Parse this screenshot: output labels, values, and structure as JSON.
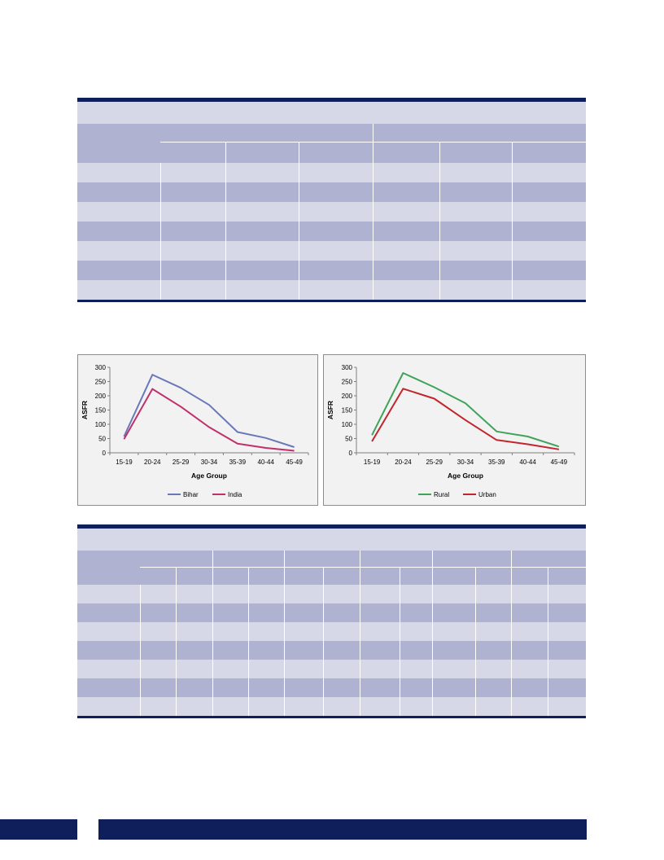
{
  "colors": {
    "navy": "#0f1f5c",
    "row_light": "#d6d8e8",
    "row_dark": "#b0b2d2",
    "bihar": "#6a78b8",
    "india": "#c0306a",
    "rural": "#3fa35a",
    "urban": "#c0262d"
  },
  "chart_data": [
    {
      "type": "line",
      "categories": [
        "15-19",
        "20-24",
        "25-29",
        "30-34",
        "35-39",
        "40-44",
        "45-49"
      ],
      "xlabel": "Age Group",
      "ylabel": "ASFR",
      "ylim": [
        0,
        300
      ],
      "yticks": [
        0,
        50,
        100,
        150,
        200,
        250,
        300
      ],
      "legend_position": "bottom",
      "grid": false,
      "series": [
        {
          "name": "Bihar",
          "color": "#6a78b8",
          "values": [
            57,
            274,
            228,
            168,
            73,
            52,
            20
          ]
        },
        {
          "name": "India",
          "color": "#c0306a",
          "values": [
            48,
            224,
            162,
            90,
            32,
            17,
            7
          ]
        }
      ]
    },
    {
      "type": "line",
      "categories": [
        "15-19",
        "20-24",
        "25-29",
        "30-34",
        "35-39",
        "40-44",
        "45-49"
      ],
      "xlabel": "Age Group",
      "ylabel": "ASFR",
      "ylim": [
        0,
        300
      ],
      "yticks": [
        0,
        50,
        100,
        150,
        200,
        250,
        300
      ],
      "legend_position": "bottom",
      "grid": false,
      "series": [
        {
          "name": "Rural",
          "color": "#3fa35a",
          "values": [
            62,
            280,
            230,
            174,
            75,
            57,
            22
          ]
        },
        {
          "name": "Urban",
          "color": "#c0262d",
          "values": [
            40,
            225,
            190,
            115,
            45,
            30,
            12
          ]
        }
      ]
    }
  ]
}
